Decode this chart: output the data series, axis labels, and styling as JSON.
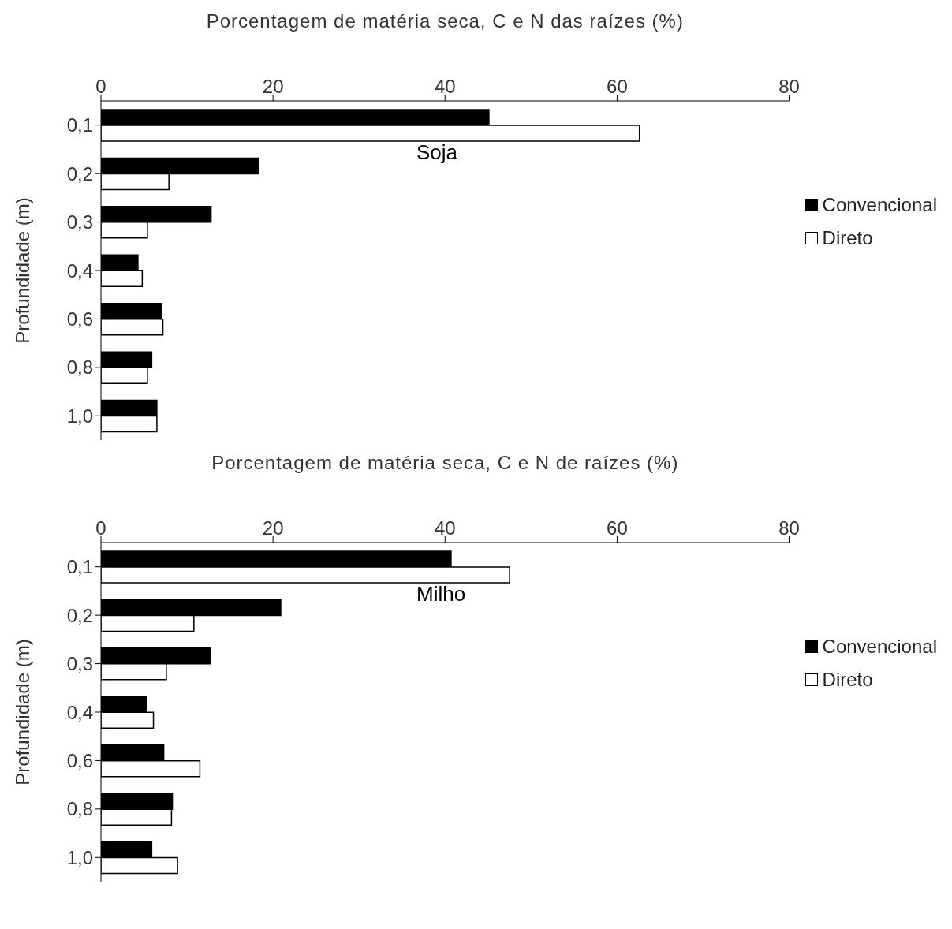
{
  "chart_data": [
    {
      "type": "bar",
      "orientation": "horizontal",
      "xlabel": "Porcentagem de matéria seca, C e N das raízes (%)",
      "ylabel": "Profundidade (m)",
      "categories": [
        "0,1",
        "0,2",
        "0,3",
        "0,4",
        "0,6",
        "0,8",
        "1,0"
      ],
      "series": [
        {
          "name": "Convencional",
          "color": "#000000",
          "values": [
            45.1,
            18.3,
            12.8,
            4.3,
            7.0,
            5.9,
            6.5
          ]
        },
        {
          "name": "Direto",
          "color": "#ffffff",
          "values": [
            62.6,
            7.9,
            5.4,
            4.8,
            7.2,
            5.4,
            6.5
          ]
        }
      ],
      "xlim": [
        0,
        80
      ],
      "xticks": [
        0,
        20,
        40,
        60,
        80
      ],
      "legend": "right",
      "grid": false,
      "annotations": [
        "Soja"
      ]
    },
    {
      "type": "bar",
      "orientation": "horizontal",
      "xlabel": "Porcentagem de matéria seca, C e N de raízes (%)",
      "ylabel": "Profundidade (m)",
      "categories": [
        "0,1",
        "0,2",
        "0,3",
        "0,4",
        "0,6",
        "0,8",
        "1,0"
      ],
      "series": [
        {
          "name": "Convencional",
          "color": "#000000",
          "values": [
            40.7,
            20.9,
            12.7,
            5.3,
            7.3,
            8.3,
            5.9
          ]
        },
        {
          "name": "Direto",
          "color": "#ffffff",
          "values": [
            47.5,
            10.8,
            7.6,
            6.1,
            11.5,
            8.2,
            8.9
          ]
        }
      ],
      "xlim": [
        0,
        80
      ],
      "xticks": [
        0,
        20,
        40,
        60,
        80
      ],
      "legend": "right",
      "grid": false,
      "annotations": [
        "Milho"
      ]
    }
  ]
}
